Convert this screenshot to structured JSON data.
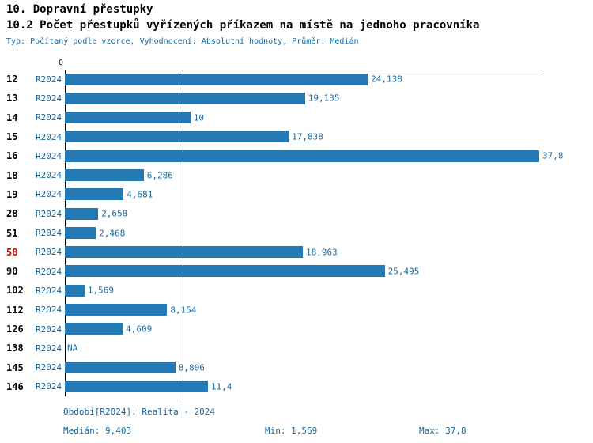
{
  "header": {
    "title1": "10. Dopravní přestupky",
    "title2": "10.2 Počet přestupků vyřízených příkazem na místě na jednoho pracovníka",
    "subtitle": "Typ: Počítaný podle vzorce, Vyhodnocení: Absolutní hodnoty, Průměr: Medián"
  },
  "chart_data": {
    "type": "bar",
    "orientation": "horizontal",
    "title": "10.2 Počet přestupků vyřízených příkazem na místě na jednoho pracovníka",
    "series_name": "R2024",
    "axis_origin_label": "0",
    "xlim": [
      0,
      37.8
    ],
    "median_value": 9.403,
    "min_value": 1.569,
    "max_value": 37.8,
    "categories": [
      "12",
      "13",
      "14",
      "15",
      "16",
      "18",
      "19",
      "28",
      "51",
      "58",
      "90",
      "102",
      "112",
      "126",
      "138",
      "145",
      "146"
    ],
    "values": [
      24.138,
      19.135,
      10,
      17.838,
      37.8,
      6.286,
      4.681,
      2.658,
      2.468,
      18.963,
      25.495,
      1.569,
      8.154,
      4.609,
      null,
      8.806,
      11.4
    ],
    "rows": [
      {
        "id": "12",
        "period": "R2024",
        "value": 24.138,
        "value_label": "24,138",
        "highlight": false
      },
      {
        "id": "13",
        "period": "R2024",
        "value": 19.135,
        "value_label": "19,135",
        "highlight": false
      },
      {
        "id": "14",
        "period": "R2024",
        "value": 10,
        "value_label": "10",
        "highlight": false
      },
      {
        "id": "15",
        "period": "R2024",
        "value": 17.838,
        "value_label": "17,838",
        "highlight": false
      },
      {
        "id": "16",
        "period": "R2024",
        "value": 37.8,
        "value_label": "37,8",
        "highlight": false
      },
      {
        "id": "18",
        "period": "R2024",
        "value": 6.286,
        "value_label": "6,286",
        "highlight": false
      },
      {
        "id": "19",
        "period": "R2024",
        "value": 4.681,
        "value_label": "4,681",
        "highlight": false
      },
      {
        "id": "28",
        "period": "R2024",
        "value": 2.658,
        "value_label": "2,658",
        "highlight": false
      },
      {
        "id": "51",
        "period": "R2024",
        "value": 2.468,
        "value_label": "2,468",
        "highlight": false
      },
      {
        "id": "58",
        "period": "R2024",
        "value": 18.963,
        "value_label": "18,963",
        "highlight": true
      },
      {
        "id": "90",
        "period": "R2024",
        "value": 25.495,
        "value_label": "25,495",
        "highlight": false
      },
      {
        "id": "102",
        "period": "R2024",
        "value": 1.569,
        "value_label": "1,569",
        "highlight": false
      },
      {
        "id": "112",
        "period": "R2024",
        "value": 8.154,
        "value_label": "8,154",
        "highlight": false
      },
      {
        "id": "126",
        "period": "R2024",
        "value": 4.609,
        "value_label": "4,609",
        "highlight": false
      },
      {
        "id": "138",
        "period": "R2024",
        "value": null,
        "value_label": "NA",
        "highlight": false
      },
      {
        "id": "145",
        "period": "R2024",
        "value": 8.806,
        "value_label": "8,806",
        "highlight": false
      },
      {
        "id": "146",
        "period": "R2024",
        "value": 11.4,
        "value_label": "11,4",
        "highlight": false
      }
    ]
  },
  "footer": {
    "period": "Období[R2024]: Realita - 2024",
    "median": "Medián: 9,403",
    "min": "Min: 1,569",
    "max": "Max: 37,8"
  },
  "colors": {
    "bar": "#2579b5",
    "text_blue": "#17699f",
    "highlight_red": "#cc0000",
    "median_line": "#5f9090",
    "axis": "#000000"
  }
}
